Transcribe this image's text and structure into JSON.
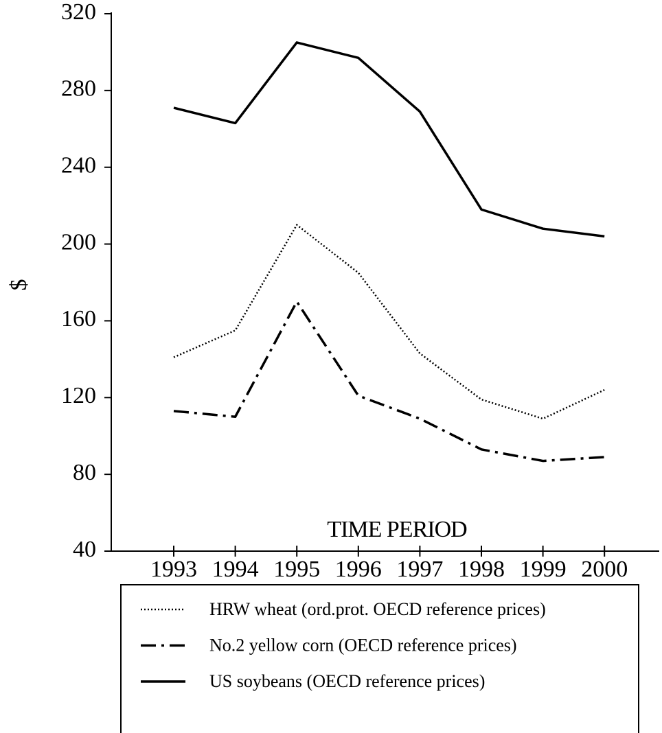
{
  "chart_data": {
    "type": "line",
    "y_label": "$",
    "x_label": "TIME PERIOD",
    "categories": [
      "1993",
      "1994",
      "1995",
      "1996",
      "1997",
      "1998",
      "1999",
      "2000"
    ],
    "ylim": [
      40,
      320
    ],
    "yticks": [
      40,
      80,
      120,
      160,
      200,
      240,
      280,
      320
    ],
    "grid": false,
    "legend": "bottom",
    "series": [
      {
        "name": "HRW wheat (ord.prot. OECD reference prices)",
        "color": "#000000",
        "style": "dotted",
        "values": [
          141,
          155,
          210,
          185,
          143,
          119,
          109,
          124
        ]
      },
      {
        "name": "No.2 yellow corn (OECD reference prices)",
        "color": "#000000",
        "style": "dash-dot",
        "values": [
          113,
          110,
          170,
          121,
          109,
          93,
          87,
          89
        ]
      },
      {
        "name": "US soybeans (OECD reference prices)",
        "color": "#000000",
        "style": "solid",
        "values": [
          271,
          263,
          305,
          297,
          269,
          218,
          208,
          204
        ]
      }
    ]
  }
}
